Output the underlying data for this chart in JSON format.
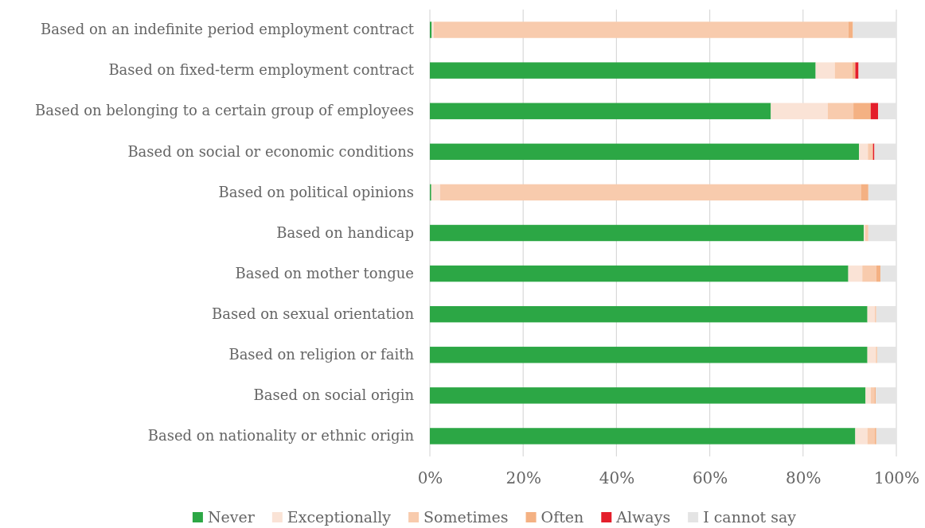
{
  "chart_data": {
    "type": "bar",
    "orientation": "horizontal",
    "stacked": true,
    "categories": [
      "Based on an indefinite period employment contract",
      "Based on fixed-term employment contract",
      "Based on belonging to a certain group of employees",
      "Based on social or economic conditions",
      "Based on political opinions",
      "Based on handicap",
      "Based on mother tongue",
      "Based on sexual orientation",
      "Based on religion or faith",
      "Based on social origin",
      "Based on nationality or ethnic origin"
    ],
    "series": [
      {
        "name": "Never",
        "color": "#2ca745",
        "values": [
          0.4,
          82.7,
          73.1,
          92.0,
          0.3,
          93.0,
          89.7,
          93.8,
          93.8,
          93.4,
          91.2
        ]
      },
      {
        "name": "Exceptionally",
        "color": "#fae3d6",
        "values": [
          0.4,
          4.1,
          12.2,
          1.9,
          1.9,
          0.3,
          3.0,
          1.6,
          1.8,
          1.1,
          2.6
        ]
      },
      {
        "name": "Sometimes",
        "color": "#f8cbad",
        "values": [
          88.9,
          3.8,
          5.5,
          0.9,
          90.2,
          0.7,
          3.0,
          0.3,
          0.3,
          0.8,
          1.6
        ]
      },
      {
        "name": "Often",
        "color": "#f4b183",
        "values": [
          1.0,
          0.6,
          3.7,
          0.2,
          1.6,
          0,
          0.9,
          0,
          0,
          0.3,
          0.3
        ]
      },
      {
        "name": "Always",
        "color": "#e41e2b",
        "values": [
          0,
          0.7,
          1.6,
          0.3,
          0,
          0,
          0,
          0,
          0,
          0,
          0
        ]
      },
      {
        "name": "I cannot say",
        "color": "#e4e4e4",
        "values": [
          9.3,
          8.1,
          3.9,
          4.7,
          6.0,
          6.0,
          3.4,
          4.3,
          4.1,
          4.4,
          4.3
        ]
      }
    ],
    "xlim": [
      0,
      100
    ],
    "xticks": [
      {
        "value": 0,
        "label": "0%"
      },
      {
        "value": 20,
        "label": "20%"
      },
      {
        "value": 40,
        "label": "40%"
      },
      {
        "value": 60,
        "label": "60%"
      },
      {
        "value": 80,
        "label": "80%"
      },
      {
        "value": 100,
        "label": "100%"
      }
    ],
    "grid": "x",
    "legend": "bottom"
  }
}
